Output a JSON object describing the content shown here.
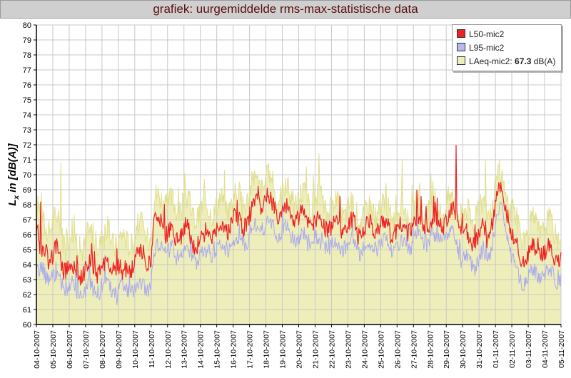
{
  "title": "grafiek: uurgemiddelde rms-max-statistische data",
  "chart_data": {
    "type": "area",
    "ylabel_main": "L",
    "ylabel_sub": "x",
    "ylabel_rest": " in [dB(A)]",
    "ylim": [
      60,
      80
    ],
    "yticks": [
      "60",
      "61",
      "62",
      "63",
      "64",
      "65",
      "66",
      "67",
      "68",
      "69",
      "70",
      "71",
      "72",
      "73",
      "74",
      "75",
      "76",
      "77",
      "78",
      "79",
      "80"
    ],
    "xticks": [
      "04-10-2007",
      "05-10-2007",
      "06-10-2007",
      "07-10-2007",
      "08-10-2007",
      "09-10-2007",
      "10-10-2007",
      "11-10-2007",
      "12-10-2007",
      "13-10-2007",
      "14-10-2007",
      "15-10-2007",
      "16-10-2007",
      "17-10-2007",
      "18-10-2007",
      "19-10-2007",
      "20-10-2007",
      "21-10-2007",
      "22-10-2007",
      "23-10-2007",
      "24-10-2007",
      "25-10-2007",
      "26-10-2007",
      "27-10-2007",
      "28-10-2007",
      "29-10-2007",
      "30-10-2007",
      "31-10-2007",
      "01-11-2007",
      "02-11-2007",
      "03-11-2007",
      "04-11-2007",
      "05-11-2007"
    ],
    "grid": true,
    "legend_position": "top-right",
    "series": [
      {
        "name": "L50-mic2",
        "color": "#ee2222",
        "anchors": [
          [
            0,
            66.5
          ],
          [
            0.25,
            64.5
          ],
          [
            0.5,
            65.2
          ],
          [
            0.8,
            64.5
          ],
          [
            1.3,
            65
          ],
          [
            1.5,
            63.8
          ],
          [
            2,
            64
          ],
          [
            2.3,
            63.5
          ],
          [
            2.8,
            63.6
          ],
          [
            3.3,
            63.8
          ],
          [
            3.8,
            63.7
          ],
          [
            4.4,
            64
          ],
          [
            5,
            63.8
          ],
          [
            5.5,
            63.5
          ],
          [
            6,
            64.2
          ],
          [
            6.5,
            64.8
          ],
          [
            7.0,
            64.3
          ],
          [
            7.2,
            66.5
          ],
          [
            7.6,
            67
          ],
          [
            8,
            66
          ],
          [
            8.5,
            65.8
          ],
          [
            9,
            66.5
          ],
          [
            9.5,
            65.5
          ],
          [
            10,
            65.7
          ],
          [
            10.5,
            66
          ],
          [
            11,
            66.3
          ],
          [
            11.5,
            66.3
          ],
          [
            12,
            67
          ],
          [
            12.5,
            66.7
          ],
          [
            13,
            67.2
          ],
          [
            13.6,
            68.3
          ],
          [
            14,
            68.5
          ],
          [
            14.5,
            67.8
          ],
          [
            15,
            67.6
          ],
          [
            15.5,
            67.3
          ],
          [
            16,
            67.2
          ],
          [
            16.5,
            67
          ],
          [
            17,
            67
          ],
          [
            17.5,
            66.7
          ],
          [
            18,
            66.6
          ],
          [
            18.5,
            66.6
          ],
          [
            19,
            66.6
          ],
          [
            19.5,
            66.5
          ],
          [
            20,
            66.2
          ],
          [
            20.5,
            66.5
          ],
          [
            21,
            66.8
          ],
          [
            21.5,
            66.5
          ],
          [
            22,
            66.3
          ],
          [
            22.5,
            66.5
          ],
          [
            23,
            66.6
          ],
          [
            23.5,
            66.7
          ],
          [
            24,
            66.8
          ],
          [
            24.5,
            66.8
          ],
          [
            25,
            67
          ],
          [
            25.4,
            67.5
          ],
          [
            25.7,
            66.8
          ],
          [
            26,
            66
          ],
          [
            26.5,
            65.5
          ],
          [
            27,
            66.2
          ],
          [
            27.5,
            66
          ],
          [
            28,
            68
          ],
          [
            28.3,
            69
          ],
          [
            28.6,
            68.2
          ],
          [
            29,
            66
          ],
          [
            29.5,
            64.5
          ],
          [
            30,
            64.7
          ],
          [
            30.5,
            65
          ],
          [
            31,
            64.8
          ],
          [
            31.5,
            64.8
          ],
          [
            32,
            64.5
          ]
        ],
        "spikes": [
          [
            0.25,
            68.2
          ],
          [
            7.0,
            63.9
          ],
          [
            25.6,
            72.0
          ],
          [
            28.2,
            69.5
          ]
        ]
      },
      {
        "name": "L95-mic2",
        "color": "#aaaaee",
        "anchors": [
          [
            0,
            63.3
          ],
          [
            0.5,
            63.5
          ],
          [
            1,
            63.2
          ],
          [
            1.5,
            62.8
          ],
          [
            2,
            62.5
          ],
          [
            2.5,
            62.2
          ],
          [
            3,
            62.4
          ],
          [
            3.5,
            62.3
          ],
          [
            4,
            62.6
          ],
          [
            4.5,
            62.5
          ],
          [
            5,
            62.3
          ],
          [
            5.5,
            62.4
          ],
          [
            6,
            62.5
          ],
          [
            6.5,
            62.6
          ],
          [
            7,
            62.9
          ],
          [
            7.2,
            64.5
          ],
          [
            7.6,
            65.5
          ],
          [
            8,
            64.8
          ],
          [
            8.5,
            64.8
          ],
          [
            9,
            65.2
          ],
          [
            9.5,
            64.5
          ],
          [
            10,
            64.5
          ],
          [
            10.5,
            64.8
          ],
          [
            11,
            65
          ],
          [
            11.5,
            65
          ],
          [
            12,
            65.5
          ],
          [
            12.5,
            65.5
          ],
          [
            13,
            66
          ],
          [
            13.6,
            66.8
          ],
          [
            14,
            66.7
          ],
          [
            14.5,
            66.3
          ],
          [
            15,
            66.2
          ],
          [
            15.5,
            66
          ],
          [
            16,
            65.8
          ],
          [
            16.5,
            65.7
          ],
          [
            17,
            65.6
          ],
          [
            17.5,
            65.5
          ],
          [
            18,
            65.3
          ],
          [
            18.5,
            65.3
          ],
          [
            19,
            65.4
          ],
          [
            19.5,
            65.2
          ],
          [
            20,
            65
          ],
          [
            20.5,
            65.2
          ],
          [
            21,
            65.5
          ],
          [
            21.5,
            65.3
          ],
          [
            22,
            65.2
          ],
          [
            22.5,
            65.3
          ],
          [
            23,
            65.5
          ],
          [
            23.5,
            65.6
          ],
          [
            24,
            65.7
          ],
          [
            24.5,
            65.8
          ],
          [
            25,
            65.9
          ],
          [
            25.5,
            65.8
          ],
          [
            26,
            64.5
          ],
          [
            26.5,
            64
          ],
          [
            27,
            64.5
          ],
          [
            27.5,
            64.3
          ],
          [
            28,
            66.5
          ],
          [
            28.3,
            67.8
          ],
          [
            28.6,
            67
          ],
          [
            29,
            64.5
          ],
          [
            29.5,
            63
          ],
          [
            30,
            63.2
          ],
          [
            30.5,
            63.5
          ],
          [
            31,
            63.4
          ],
          [
            31.5,
            63.3
          ],
          [
            32,
            63
          ]
        ],
        "spikes": [
          [
            29.6,
            62.3
          ],
          [
            3.0,
            61.8
          ],
          [
            4.9,
            61.3
          ]
        ]
      },
      {
        "name": "LAeq-mic2",
        "legend_value": "67.3",
        "legend_unit": " dB(A)",
        "color": "#eeeebb",
        "line_color": "#e0df8e",
        "anchors": [
          [
            0,
            67.8
          ],
          [
            0.5,
            66.5
          ],
          [
            1,
            67
          ],
          [
            1.5,
            66.3
          ],
          [
            2,
            66
          ],
          [
            2.5,
            65.5
          ],
          [
            3,
            65.5
          ],
          [
            3.5,
            65.8
          ],
          [
            4,
            65.8
          ],
          [
            4.5,
            66
          ],
          [
            5,
            65.5
          ],
          [
            5.5,
            65.6
          ],
          [
            6,
            66
          ],
          [
            6.5,
            66.5
          ],
          [
            7,
            66
          ],
          [
            7.2,
            68
          ],
          [
            7.6,
            68.8
          ],
          [
            8,
            68
          ],
          [
            8.5,
            67.8
          ],
          [
            9,
            68.3
          ],
          [
            9.5,
            67.5
          ],
          [
            10,
            67.5
          ],
          [
            10.5,
            67.8
          ],
          [
            11,
            68
          ],
          [
            11.5,
            68
          ],
          [
            12,
            68.5
          ],
          [
            12.5,
            68.3
          ],
          [
            13,
            68.8
          ],
          [
            13.6,
            69.5
          ],
          [
            14,
            69.7
          ],
          [
            14.5,
            69
          ],
          [
            15,
            68.8
          ],
          [
            15.5,
            68.5
          ],
          [
            16,
            68.4
          ],
          [
            16.5,
            68.3
          ],
          [
            17,
            68.2
          ],
          [
            17.5,
            68
          ],
          [
            18,
            68
          ],
          [
            18.5,
            67.8
          ],
          [
            19,
            67.8
          ],
          [
            19.5,
            67.6
          ],
          [
            20,
            67.4
          ],
          [
            20.5,
            67.6
          ],
          [
            21,
            67.8
          ],
          [
            21.5,
            67.6
          ],
          [
            22,
            67.5
          ],
          [
            22.5,
            67.6
          ],
          [
            23,
            67.6
          ],
          [
            23.5,
            67.7
          ],
          [
            24,
            67.8
          ],
          [
            24.5,
            67.8
          ],
          [
            25,
            68
          ],
          [
            25.5,
            68.2
          ],
          [
            26,
            67.5
          ],
          [
            26.5,
            67
          ],
          [
            27,
            67.8
          ],
          [
            27.5,
            67.5
          ],
          [
            28,
            69
          ],
          [
            28.3,
            69.8
          ],
          [
            28.6,
            69
          ],
          [
            29,
            67.5
          ],
          [
            29.5,
            66
          ],
          [
            30,
            66.3
          ],
          [
            30.5,
            66.7
          ],
          [
            31,
            66.5
          ],
          [
            31.5,
            66.5
          ],
          [
            32,
            66.3
          ]
        ],
        "spikes": [
          [
            1.5,
            70.8
          ],
          [
            13.3,
            70.3
          ],
          [
            0.3,
            68.8
          ]
        ]
      }
    ]
  }
}
